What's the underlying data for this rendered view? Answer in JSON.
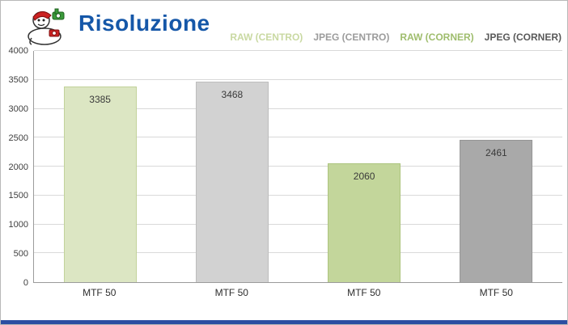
{
  "header": {
    "title": "Risoluzione"
  },
  "colors": {
    "title": "#1557a8",
    "footer_bar": "#2b4ea2",
    "axis": "#9b9b9b",
    "gridline": "#d9d9d9"
  },
  "legend": [
    {
      "label": "RAW (CENTRO)",
      "color": "#c9d9a2"
    },
    {
      "label": "JPEG (CENTRO)",
      "color": "#9c9c9c"
    },
    {
      "label": "RAW (CORNER)",
      "color": "#9fbd6d"
    },
    {
      "label": "JPEG (CORNER)",
      "color": "#595959"
    }
  ],
  "chart_data": {
    "type": "bar",
    "title": "Risoluzione",
    "categories": [
      "MTF 50",
      "MTF 50",
      "MTF 50",
      "MTF 50"
    ],
    "bars": [
      {
        "series": "RAW (CENTRO)",
        "category": "MTF 50",
        "value": 3385,
        "color": "#dce6c3",
        "border": "#c2d29a"
      },
      {
        "series": "JPEG (CENTRO)",
        "category": "MTF 50",
        "value": 3468,
        "color": "#d2d2d2",
        "border": "#bdbdbd"
      },
      {
        "series": "RAW (CORNER)",
        "category": "MTF 50",
        "value": 2060,
        "color": "#c3d69b",
        "border": "#adc47e"
      },
      {
        "series": "JPEG (CORNER)",
        "category": "MTF 50",
        "value": 2461,
        "color": "#a9a9a9",
        "border": "#969696"
      }
    ],
    "ylim": [
      0,
      4000
    ],
    "ytick_step": 500,
    "grid": true,
    "legend_position": "top-right"
  }
}
